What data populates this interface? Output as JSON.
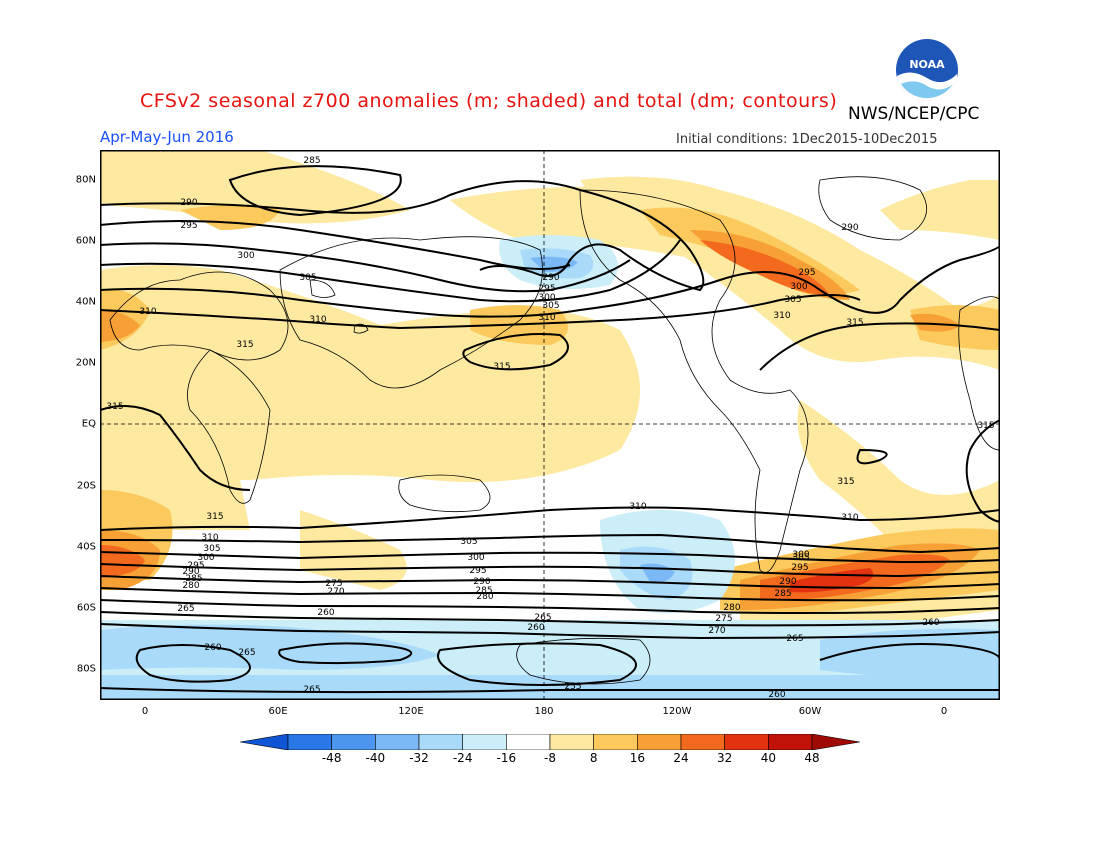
{
  "header": {
    "title": "CFSv2 seasonal z700 anomalies (m; shaded) and total (dm; contours)",
    "agency": "NWS/NCEP/CPC",
    "season": "Apr-May-Jun 2016",
    "initial_conditions": "Initial conditions: 1Dec2015-10Dec2015",
    "logo_text": "NOAA",
    "logo_icon": "noaa-logo-icon"
  },
  "map": {
    "lat_ticks": [
      "80N",
      "60N",
      "40N",
      "20N",
      "EQ",
      "20S",
      "40S",
      "60S",
      "80S"
    ],
    "lon_ticks": [
      "0",
      "60E",
      "120E",
      "180",
      "120W",
      "60W",
      "0"
    ],
    "contour_labels": {
      "c315_pac": "315",
      "c310_pac": "310",
      "c305_pac": "305",
      "c300_pac": "300",
      "c295_pac": "295",
      "c290_pac": "290",
      "c285_top": "285",
      "c290_ul": "290",
      "c295_ul": "295",
      "c300_ul": "300",
      "c305_ul": "305",
      "c310_ul": "310",
      "c310_asia": "310",
      "c315_afr": "315",
      "c315_left": "315",
      "c290_na": "290",
      "c295_na": "295",
      "c300_na": "300",
      "c305_na": "305",
      "c310_na": "310",
      "c315_na": "315",
      "c315_right": "315",
      "c315_sa": "315",
      "c310_s": "310",
      "c310_s2": "310",
      "c315_s": "315",
      "c305_s": "305",
      "c300_s": "300",
      "c295_s": "295",
      "c290_s": "290",
      "c285_s": "285",
      "c280_s": "280",
      "c275_s": "275",
      "c270_s": "270",
      "c265_s": "265",
      "c260_s": "260",
      "c310_sl": "310",
      "c305_sl": "305",
      "c300_sl": "300",
      "c295_sl": "295",
      "c290_sl": "290",
      "c285_sl": "285",
      "c280_sl": "280",
      "c305_sr": "305",
      "c300_sr": "300",
      "c295_sr": "295",
      "c290_sr": "290",
      "c285_sr": "285",
      "c280_sr": "280",
      "c275_sr": "275",
      "c270_sr": "270",
      "c265_sr": "265",
      "c265_sw": "265",
      "c260_sw": "260",
      "c265_sc": "265",
      "c260_sc": "260",
      "c255_sc": "255",
      "c265_bot": "265",
      "c260_bot": "260",
      "c260_re": "260",
      "c260_sa": "260",
      "c265_sa2": "265"
    }
  },
  "colorbar": {
    "labels": [
      "-48",
      "-40",
      "-32",
      "-24",
      "-16",
      "-8",
      "8",
      "16",
      "24",
      "32",
      "40",
      "48"
    ],
    "colors": [
      "#0f55d6",
      "#2a78e8",
      "#4c96f0",
      "#7bb8f6",
      "#a9dafa",
      "#cbeef8",
      "#ffffff",
      "#fde9a0",
      "#fbc95c",
      "#f7a035",
      "#f36a1f",
      "#e23210",
      "#c01208",
      "#a00a04"
    ]
  }
}
